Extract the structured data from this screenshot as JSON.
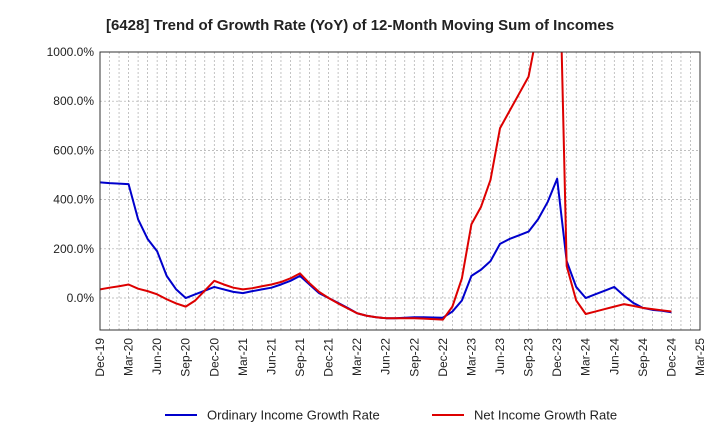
{
  "chart_data": {
    "type": "line",
    "title": "[6428]  Trend of Growth Rate (YoY) of 12-Month Moving Sum of Incomes",
    "xlabel": "",
    "ylabel": "",
    "ylim": [
      -130,
      1000
    ],
    "yticks": [
      0,
      200,
      400,
      600,
      800,
      1000
    ],
    "ytick_labels": [
      "0.0%",
      "200.0%",
      "400.0%",
      "600.0%",
      "800.0%",
      "1000.0%"
    ],
    "x_tick_labels": [
      "Dec-19",
      "Mar-20",
      "Jun-20",
      "Sep-20",
      "Dec-20",
      "Mar-21",
      "Jun-21",
      "Sep-21",
      "Dec-21",
      "Mar-22",
      "Jun-22",
      "Sep-22",
      "Dec-22",
      "Mar-23",
      "Jun-23",
      "Sep-23",
      "Dec-23",
      "Mar-24",
      "Jun-24",
      "Sep-24",
      "Dec-24",
      "Mar-25"
    ],
    "grid": true,
    "legend_position": "bottom",
    "x": [
      "Dec-19",
      "Jan-20",
      "Feb-20",
      "Mar-20",
      "Apr-20",
      "May-20",
      "Jun-20",
      "Jul-20",
      "Aug-20",
      "Sep-20",
      "Oct-20",
      "Nov-20",
      "Dec-20",
      "Jan-21",
      "Feb-21",
      "Mar-21",
      "Apr-21",
      "May-21",
      "Jun-21",
      "Jul-21",
      "Aug-21",
      "Sep-21",
      "Oct-21",
      "Nov-21",
      "Dec-21",
      "Jan-22",
      "Feb-22",
      "Mar-22",
      "Apr-22",
      "May-22",
      "Jun-22",
      "Jul-22",
      "Aug-22",
      "Sep-22",
      "Oct-22",
      "Nov-22",
      "Dec-22",
      "Jan-23",
      "Feb-23",
      "Mar-23",
      "Apr-23",
      "May-23",
      "Jun-23",
      "Jul-23",
      "Aug-23",
      "Sep-23",
      "Oct-23",
      "Nov-23",
      "Dec-23",
      "Jan-24",
      "Feb-24",
      "Mar-24",
      "Apr-24",
      "May-24",
      "Jun-24",
      "Jul-24",
      "Aug-24",
      "Sep-24",
      "Oct-24",
      "Nov-24",
      "Dec-24"
    ],
    "series": [
      {
        "name": "Ordinary Income Growth Rate",
        "color": "#0000cc",
        "values": [
          470,
          467,
          465,
          463,
          320,
          240,
          190,
          90,
          35,
          0,
          15,
          30,
          45,
          35,
          25,
          20,
          28,
          35,
          42,
          55,
          70,
          90,
          55,
          20,
          0,
          -20,
          -40,
          -62,
          -72,
          -78,
          -82,
          -82,
          -80,
          -78,
          -78,
          -79,
          -80,
          -55,
          -10,
          90,
          115,
          150,
          220,
          240,
          255,
          270,
          320,
          390,
          485,
          150,
          45,
          0,
          15,
          30,
          45,
          10,
          -20,
          -40,
          -48,
          -52,
          -58
        ]
      },
      {
        "name": "Net Income Growth Rate",
        "color": "#dd0000",
        "values": [
          35,
          42,
          48,
          55,
          38,
          28,
          15,
          -5,
          -22,
          -35,
          -10,
          30,
          70,
          55,
          42,
          35,
          40,
          48,
          55,
          65,
          80,
          100,
          60,
          25,
          0,
          -22,
          -42,
          -62,
          -72,
          -78,
          -82,
          -82,
          -82,
          -82,
          -84,
          -86,
          -88,
          -35,
          80,
          300,
          370,
          480,
          690,
          760,
          830,
          900,
          1100,
          1700,
          1800,
          130,
          -10,
          -65,
          -55,
          -45,
          -35,
          -25,
          -32,
          -40,
          -45,
          -50,
          -55
        ]
      }
    ]
  }
}
